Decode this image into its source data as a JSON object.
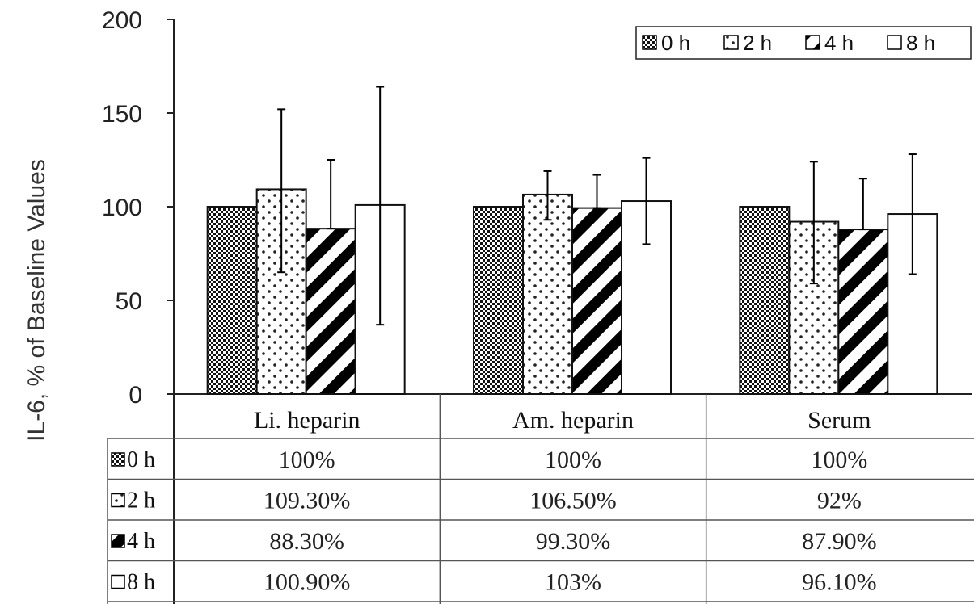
{
  "chart_data": {
    "type": "bar",
    "ylabel": "IL-6, % of Baseline Values",
    "ylim": [
      0,
      200
    ],
    "yticks": [
      0,
      50,
      100,
      150,
      200
    ],
    "categories": [
      "Li. heparin",
      "Am. heparin",
      "Serum"
    ],
    "series": [
      {
        "name": "0 h",
        "pattern": "checker",
        "values": [
          100,
          100,
          100
        ],
        "err_low": [
          100,
          100,
          100
        ],
        "err_high": [
          100,
          100,
          100
        ],
        "labels": [
          "100%",
          "100%",
          "100%"
        ]
      },
      {
        "name": "2 h",
        "pattern": "dots",
        "values": [
          109.3,
          106.5,
          92
        ],
        "err_low": [
          65,
          93,
          59
        ],
        "err_high": [
          152,
          119,
          124
        ],
        "labels": [
          "109.30%",
          "106.50%",
          "92%"
        ]
      },
      {
        "name": "4 h",
        "pattern": "diagonal",
        "values": [
          88.3,
          99.3,
          87.9
        ],
        "err_low": [
          88.3,
          99.3,
          87.9
        ],
        "err_high": [
          125,
          117,
          115
        ],
        "labels": [
          "88.30%",
          "99.30%",
          "87.90%"
        ]
      },
      {
        "name": "8 h",
        "pattern": "blank",
        "values": [
          100.9,
          103,
          96.1
        ],
        "err_low": [
          37,
          80,
          64
        ],
        "err_high": [
          164,
          126,
          128
        ],
        "labels": [
          "100.90%",
          "103%",
          "96.10%"
        ]
      }
    ],
    "legend": {
      "position": "top-right"
    },
    "grid": false,
    "colors": {
      "bar_outline": "#111111",
      "axis": "#222222",
      "fill": "#ffffff",
      "ink": "#000000"
    }
  }
}
